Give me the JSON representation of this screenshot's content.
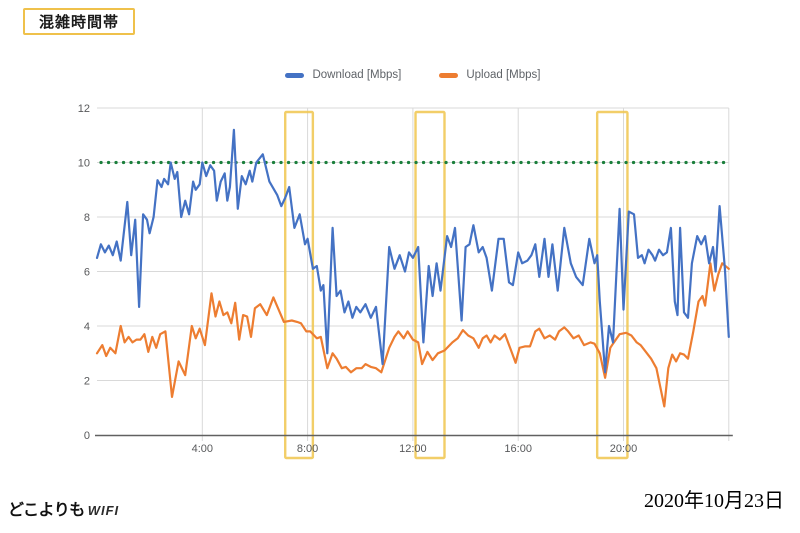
{
  "page": {
    "background": "#ffffff"
  },
  "title_box": {
    "label": "混雑時間帯",
    "border_color": "#efc14b"
  },
  "footer": {
    "logo_main": "どこよりも",
    "logo_sub": "WIFI",
    "date": "2020年10月23日"
  },
  "chart_data": {
    "type": "line",
    "title": "",
    "xlabel": "",
    "ylabel": "",
    "xlim": [
      0,
      24
    ],
    "ylim": [
      0,
      12
    ],
    "grid": true,
    "legend_position": "top-center",
    "x_ticks": [
      {
        "h": 4,
        "label": "4:00"
      },
      {
        "h": 8,
        "label": "8:00"
      },
      {
        "h": 12,
        "label": "12:00"
      },
      {
        "h": 16,
        "label": "16:00"
      },
      {
        "h": 20,
        "label": "20:00"
      }
    ],
    "x_gridlines_h": [
      4,
      8,
      12,
      16,
      20,
      24
    ],
    "y_ticks": [
      0,
      2,
      4,
      6,
      8,
      10,
      12
    ],
    "target_line": {
      "value": 10,
      "color": "#1b7f3c",
      "style": "dotted"
    },
    "highlight_color": "#f0c64e",
    "highlight_windows": [
      {
        "from": 7.15,
        "to": 8.2
      },
      {
        "from": 12.1,
        "to": 13.2
      },
      {
        "from": 19.0,
        "to": 20.15
      }
    ],
    "series": [
      {
        "name": "Download [Mbps]",
        "color": "#4472c4",
        "points": [
          [
            0,
            6.5
          ],
          [
            0.15,
            7.0
          ],
          [
            0.3,
            6.7
          ],
          [
            0.45,
            6.95
          ],
          [
            0.6,
            6.6
          ],
          [
            0.75,
            7.1
          ],
          [
            0.9,
            6.4
          ],
          [
            1.15,
            8.55
          ],
          [
            1.3,
            6.6
          ],
          [
            1.45,
            7.9
          ],
          [
            1.6,
            4.7
          ],
          [
            1.75,
            8.1
          ],
          [
            1.9,
            7.9
          ],
          [
            2.0,
            7.4
          ],
          [
            2.15,
            8.0
          ],
          [
            2.3,
            9.35
          ],
          [
            2.45,
            9.1
          ],
          [
            2.55,
            9.4
          ],
          [
            2.7,
            9.2
          ],
          [
            2.8,
            10.0
          ],
          [
            2.95,
            9.4
          ],
          [
            3.05,
            9.65
          ],
          [
            3.2,
            8.0
          ],
          [
            3.35,
            8.6
          ],
          [
            3.5,
            8.1
          ],
          [
            3.65,
            9.3
          ],
          [
            3.75,
            9.0
          ],
          [
            3.9,
            9.2
          ],
          [
            4.0,
            10.0
          ],
          [
            4.15,
            9.5
          ],
          [
            4.3,
            9.9
          ],
          [
            4.45,
            9.7
          ],
          [
            4.55,
            8.6
          ],
          [
            4.7,
            9.3
          ],
          [
            4.85,
            9.6
          ],
          [
            4.95,
            8.6
          ],
          [
            5.05,
            9.1
          ],
          [
            5.2,
            11.2
          ],
          [
            5.35,
            8.3
          ],
          [
            5.5,
            9.5
          ],
          [
            5.65,
            9.2
          ],
          [
            5.8,
            9.7
          ],
          [
            5.9,
            9.3
          ],
          [
            6.05,
            10.0
          ],
          [
            6.3,
            10.3
          ],
          [
            6.55,
            9.3
          ],
          [
            6.85,
            8.8
          ],
          [
            7.0,
            8.4
          ],
          [
            7.15,
            8.7
          ],
          [
            7.3,
            9.1
          ],
          [
            7.5,
            7.6
          ],
          [
            7.7,
            8.1
          ],
          [
            7.9,
            7.0
          ],
          [
            8.0,
            7.2
          ],
          [
            8.2,
            6.1
          ],
          [
            8.35,
            6.2
          ],
          [
            8.5,
            5.3
          ],
          [
            8.6,
            5.5
          ],
          [
            8.75,
            3.0
          ],
          [
            8.95,
            7.6
          ],
          [
            9.1,
            5.1
          ],
          [
            9.25,
            5.3
          ],
          [
            9.4,
            4.5
          ],
          [
            9.55,
            4.9
          ],
          [
            9.7,
            4.3
          ],
          [
            9.85,
            4.7
          ],
          [
            10.0,
            4.5
          ],
          [
            10.2,
            4.8
          ],
          [
            10.4,
            4.3
          ],
          [
            10.6,
            4.7
          ],
          [
            10.85,
            2.6
          ],
          [
            11.1,
            6.9
          ],
          [
            11.3,
            6.1
          ],
          [
            11.5,
            6.6
          ],
          [
            11.7,
            6.0
          ],
          [
            11.85,
            6.7
          ],
          [
            12.0,
            6.5
          ],
          [
            12.2,
            6.9
          ],
          [
            12.4,
            3.4
          ],
          [
            12.6,
            6.2
          ],
          [
            12.75,
            5.1
          ],
          [
            12.9,
            6.3
          ],
          [
            13.05,
            5.3
          ],
          [
            13.3,
            7.3
          ],
          [
            13.45,
            6.9
          ],
          [
            13.6,
            7.6
          ],
          [
            13.85,
            4.2
          ],
          [
            14.0,
            6.9
          ],
          [
            14.15,
            7.0
          ],
          [
            14.3,
            7.7
          ],
          [
            14.5,
            6.7
          ],
          [
            14.65,
            6.9
          ],
          [
            14.8,
            6.5
          ],
          [
            15.0,
            5.3
          ],
          [
            15.25,
            7.2
          ],
          [
            15.45,
            7.2
          ],
          [
            15.65,
            5.6
          ],
          [
            15.8,
            5.5
          ],
          [
            16.0,
            6.7
          ],
          [
            16.15,
            6.3
          ],
          [
            16.35,
            6.4
          ],
          [
            16.5,
            6.6
          ],
          [
            16.65,
            7.0
          ],
          [
            16.8,
            5.8
          ],
          [
            17.0,
            7.2
          ],
          [
            17.15,
            5.8
          ],
          [
            17.3,
            7.0
          ],
          [
            17.5,
            5.3
          ],
          [
            17.75,
            7.6
          ],
          [
            18.0,
            6.3
          ],
          [
            18.2,
            5.8
          ],
          [
            18.45,
            5.5
          ],
          [
            18.7,
            7.2
          ],
          [
            18.9,
            6.3
          ],
          [
            19.0,
            6.6
          ],
          [
            19.1,
            4.9
          ],
          [
            19.3,
            2.3
          ],
          [
            19.45,
            4.0
          ],
          [
            19.6,
            3.4
          ],
          [
            19.85,
            8.3
          ],
          [
            20.0,
            4.6
          ],
          [
            20.2,
            8.2
          ],
          [
            20.4,
            8.1
          ],
          [
            20.55,
            6.5
          ],
          [
            20.7,
            6.6
          ],
          [
            20.8,
            6.3
          ],
          [
            20.95,
            6.8
          ],
          [
            21.1,
            6.6
          ],
          [
            21.2,
            6.4
          ],
          [
            21.35,
            6.8
          ],
          [
            21.5,
            6.6
          ],
          [
            21.65,
            6.7
          ],
          [
            21.8,
            7.6
          ],
          [
            21.95,
            4.9
          ],
          [
            22.05,
            4.4
          ],
          [
            22.15,
            7.6
          ],
          [
            22.3,
            4.5
          ],
          [
            22.45,
            4.3
          ],
          [
            22.6,
            6.3
          ],
          [
            22.8,
            7.3
          ],
          [
            22.95,
            7.0
          ],
          [
            23.1,
            7.3
          ],
          [
            23.25,
            6.3
          ],
          [
            23.4,
            6.9
          ],
          [
            23.5,
            6.0
          ],
          [
            23.65,
            8.4
          ],
          [
            23.85,
            6.1
          ],
          [
            24.0,
            3.6
          ]
        ]
      },
      {
        "name": "Upload [Mbps]",
        "color": "#ed7d31",
        "points": [
          [
            0,
            3.0
          ],
          [
            0.2,
            3.3
          ],
          [
            0.35,
            2.9
          ],
          [
            0.5,
            3.2
          ],
          [
            0.7,
            3.0
          ],
          [
            0.9,
            4.0
          ],
          [
            1.05,
            3.4
          ],
          [
            1.2,
            3.6
          ],
          [
            1.35,
            3.4
          ],
          [
            1.5,
            3.5
          ],
          [
            1.65,
            3.5
          ],
          [
            1.8,
            3.7
          ],
          [
            1.95,
            3.05
          ],
          [
            2.1,
            3.6
          ],
          [
            2.25,
            3.2
          ],
          [
            2.4,
            3.7
          ],
          [
            2.6,
            3.8
          ],
          [
            2.85,
            1.4
          ],
          [
            3.1,
            2.7
          ],
          [
            3.35,
            2.2
          ],
          [
            3.6,
            4.0
          ],
          [
            3.75,
            3.55
          ],
          [
            3.9,
            3.9
          ],
          [
            4.1,
            3.3
          ],
          [
            4.35,
            5.2
          ],
          [
            4.5,
            4.35
          ],
          [
            4.65,
            4.9
          ],
          [
            4.8,
            4.4
          ],
          [
            4.95,
            4.5
          ],
          [
            5.1,
            4.1
          ],
          [
            5.25,
            4.85
          ],
          [
            5.4,
            3.5
          ],
          [
            5.55,
            4.4
          ],
          [
            5.7,
            4.35
          ],
          [
            5.85,
            3.6
          ],
          [
            6.0,
            4.65
          ],
          [
            6.2,
            4.8
          ],
          [
            6.45,
            4.4
          ],
          [
            6.7,
            5.05
          ],
          [
            6.9,
            4.6
          ],
          [
            7.1,
            4.15
          ],
          [
            7.4,
            4.2
          ],
          [
            7.6,
            4.15
          ],
          [
            7.75,
            4.1
          ],
          [
            7.95,
            3.8
          ],
          [
            8.1,
            3.8
          ],
          [
            8.35,
            3.55
          ],
          [
            8.5,
            3.6
          ],
          [
            8.75,
            2.45
          ],
          [
            8.95,
            3.0
          ],
          [
            9.1,
            2.8
          ],
          [
            9.3,
            2.45
          ],
          [
            9.45,
            2.5
          ],
          [
            9.65,
            2.3
          ],
          [
            9.85,
            2.45
          ],
          [
            10.05,
            2.45
          ],
          [
            10.2,
            2.6
          ],
          [
            10.4,
            2.5
          ],
          [
            10.6,
            2.45
          ],
          [
            10.8,
            2.3
          ],
          [
            11.1,
            3.2
          ],
          [
            11.3,
            3.6
          ],
          [
            11.45,
            3.8
          ],
          [
            11.65,
            3.55
          ],
          [
            11.8,
            3.8
          ],
          [
            12.0,
            3.5
          ],
          [
            12.2,
            3.4
          ],
          [
            12.35,
            2.6
          ],
          [
            12.55,
            3.05
          ],
          [
            12.75,
            2.75
          ],
          [
            12.95,
            3.0
          ],
          [
            13.2,
            3.1
          ],
          [
            13.5,
            3.4
          ],
          [
            13.7,
            3.55
          ],
          [
            13.9,
            3.85
          ],
          [
            14.1,
            3.65
          ],
          [
            14.3,
            3.55
          ],
          [
            14.5,
            3.2
          ],
          [
            14.65,
            3.55
          ],
          [
            14.8,
            3.65
          ],
          [
            14.95,
            3.4
          ],
          [
            15.1,
            3.65
          ],
          [
            15.3,
            3.5
          ],
          [
            15.5,
            3.7
          ],
          [
            15.75,
            3.05
          ],
          [
            15.9,
            2.65
          ],
          [
            16.05,
            3.2
          ],
          [
            16.25,
            3.25
          ],
          [
            16.45,
            3.25
          ],
          [
            16.65,
            3.8
          ],
          [
            16.8,
            3.9
          ],
          [
            17.0,
            3.55
          ],
          [
            17.2,
            3.65
          ],
          [
            17.4,
            3.5
          ],
          [
            17.55,
            3.8
          ],
          [
            17.75,
            3.95
          ],
          [
            17.9,
            3.8
          ],
          [
            18.1,
            3.55
          ],
          [
            18.3,
            3.65
          ],
          [
            18.5,
            3.3
          ],
          [
            18.75,
            3.4
          ],
          [
            18.9,
            3.35
          ],
          [
            19.1,
            3.0
          ],
          [
            19.3,
            2.1
          ],
          [
            19.5,
            3.2
          ],
          [
            19.6,
            3.35
          ],
          [
            19.85,
            3.7
          ],
          [
            20.1,
            3.75
          ],
          [
            20.3,
            3.65
          ],
          [
            20.5,
            3.4
          ],
          [
            20.65,
            3.3
          ],
          [
            20.85,
            3.05
          ],
          [
            21.05,
            2.8
          ],
          [
            21.25,
            2.45
          ],
          [
            21.55,
            1.05
          ],
          [
            21.7,
            2.45
          ],
          [
            21.85,
            2.95
          ],
          [
            22.0,
            2.7
          ],
          [
            22.15,
            3.0
          ],
          [
            22.3,
            2.95
          ],
          [
            22.45,
            2.8
          ],
          [
            22.65,
            3.8
          ],
          [
            22.85,
            4.9
          ],
          [
            23.0,
            5.1
          ],
          [
            23.1,
            4.75
          ],
          [
            23.3,
            6.3
          ],
          [
            23.45,
            5.3
          ],
          [
            23.6,
            5.9
          ],
          [
            23.75,
            6.3
          ],
          [
            24.0,
            6.1
          ]
        ]
      }
    ]
  }
}
